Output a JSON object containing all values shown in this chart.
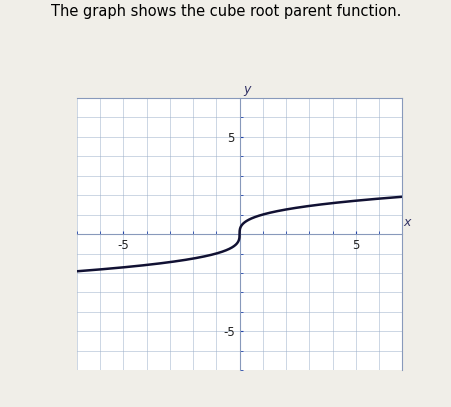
{
  "title": "The graph shows the cube root parent function.",
  "title_fontsize": 10.5,
  "title_color": "#000000",
  "xlim": [
    -7,
    7
  ],
  "ylim": [
    -7,
    7
  ],
  "xticks": [
    -5,
    5
  ],
  "yticks": [
    -5,
    5
  ],
  "xlabel": "x",
  "ylabel": "y",
  "grid_color": "#9aaec8",
  "grid_alpha": 0.7,
  "axis_color": "#2244aa",
  "curve_color": "#111133",
  "curve_linewidth": 1.8,
  "background_color": "#f0eee8",
  "plot_bg_color": "#ffffff",
  "box_color": "#8899bb",
  "tick_label_fontsize": 8.5,
  "figsize": [
    4.52,
    4.07
  ],
  "dpi": 100
}
